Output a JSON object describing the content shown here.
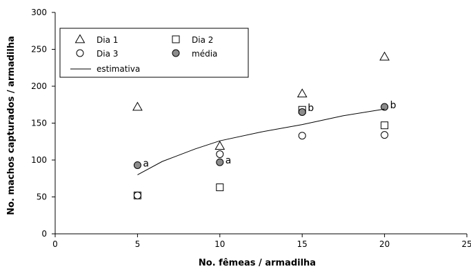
{
  "chart_data": {
    "type": "scatter",
    "xlabel": "No. fêmeas / armadilha",
    "ylabel": "No. machos capturados / armadilha",
    "xlim": [
      0,
      25
    ],
    "ylim": [
      0,
      300
    ],
    "xticks": [
      0,
      5,
      10,
      15,
      20,
      25
    ],
    "yticks": [
      0,
      50,
      100,
      150,
      200,
      250,
      300
    ],
    "grid": false,
    "legend_position": "top-left",
    "series": [
      {
        "name": "Dia 1",
        "marker": "triangle",
        "x": [
          5,
          10,
          15,
          20
        ],
        "y": [
          172,
          119,
          190,
          240
        ]
      },
      {
        "name": "Dia 2",
        "marker": "square",
        "x": [
          5,
          10,
          15,
          20
        ],
        "y": [
          52,
          63,
          168,
          147
        ]
      },
      {
        "name": "Dia 3",
        "marker": "circle",
        "x": [
          5,
          10,
          15,
          20
        ],
        "y": [
          52,
          108,
          133,
          134
        ]
      },
      {
        "name": "média",
        "marker": "filled-circle",
        "color": "#8c8c8c",
        "x": [
          5,
          10,
          15,
          20
        ],
        "y": [
          93,
          97,
          165,
          172
        ]
      },
      {
        "name": "estimativa",
        "marker": "line",
        "x": [
          5,
          6.5,
          8.5,
          10,
          12.5,
          15,
          17.5,
          20
        ],
        "y": [
          80,
          98,
          115,
          126,
          138,
          148,
          160,
          169
        ]
      }
    ],
    "annotations": [
      {
        "text": "a",
        "x": 5,
        "y": 93
      },
      {
        "text": "a",
        "x": 10,
        "y": 97
      },
      {
        "text": "b",
        "x": 15,
        "y": 168
      },
      {
        "text": "b",
        "x": 20,
        "y": 172
      }
    ]
  }
}
